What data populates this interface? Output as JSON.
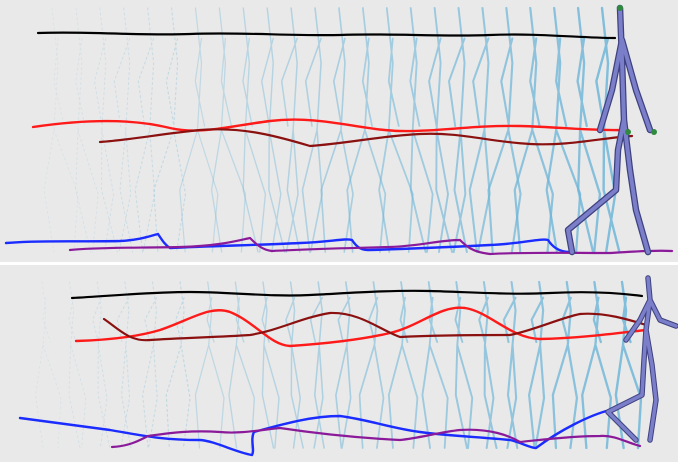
{
  "figure": {
    "description_visible_text": "",
    "background": "#e9e9e9",
    "separator": "#ffffff"
  },
  "colors": {
    "ghost_skeleton": "#6fb6d8",
    "final_skeleton": "#7b7ec8",
    "final_skeleton_outline": "#3f4280",
    "joint_marker": "#2e8b3e",
    "head_trail": "#000000",
    "hand_trail_a": "#ff1a1a",
    "hand_trail_b": "#8b1010",
    "foot_trail_a": "#1a2cff",
    "foot_trail_b": "#8a1a9a"
  },
  "panels": [
    {
      "name": "top-panel",
      "ghost_frames": 24
    },
    {
      "name": "bottom-panel",
      "ghost_frames": 22
    }
  ]
}
